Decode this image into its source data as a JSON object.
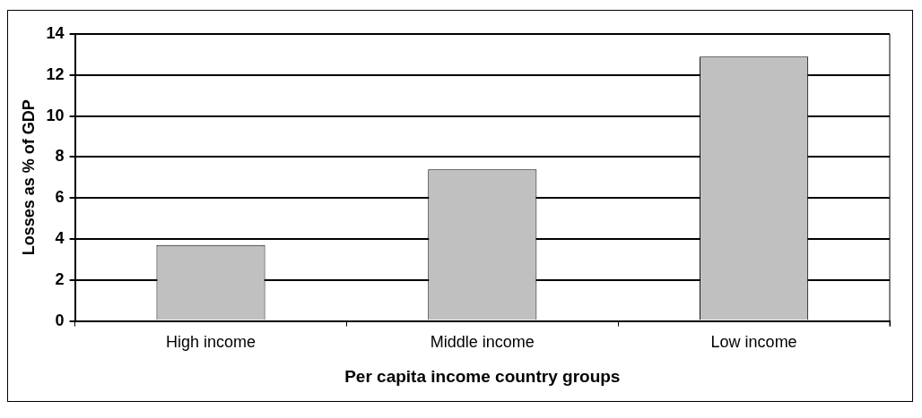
{
  "chart_data": {
    "type": "bar",
    "xlabel": "Per capita income country groups",
    "ylabel": "Losses as % of GDP",
    "categories": [
      "High income",
      "Middle income",
      "Low income"
    ],
    "values": [
      3.7,
      7.4,
      12.9
    ],
    "color": "#c0c0c0",
    "ylim": [
      0,
      14
    ],
    "yticks": [
      0,
      2,
      4,
      6,
      8,
      10,
      12,
      14
    ],
    "grid": "y"
  }
}
